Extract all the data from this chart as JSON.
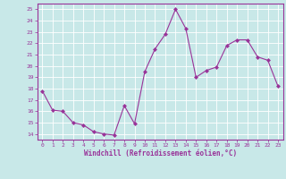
{
  "x": [
    0,
    1,
    2,
    3,
    4,
    5,
    6,
    7,
    8,
    9,
    10,
    11,
    12,
    13,
    14,
    15,
    16,
    17,
    18,
    19,
    20,
    21,
    22,
    23
  ],
  "y": [
    17.8,
    16.1,
    16.0,
    15.0,
    14.8,
    14.2,
    14.0,
    13.9,
    16.5,
    14.9,
    19.5,
    21.5,
    22.8,
    25.0,
    23.3,
    19.0,
    19.6,
    19.9,
    21.8,
    22.3,
    22.3,
    20.8,
    20.5,
    18.2
  ],
  "line_color": "#993399",
  "marker": "D",
  "marker_size": 2.0,
  "bg_color": "#c8e8e8",
  "grid_color": "#ffffff",
  "xlabel": "Windchill (Refroidissement éolien,°C)",
  "xlabel_color": "#993399",
  "tick_color": "#993399",
  "ylim": [
    13.5,
    25.5
  ],
  "xlim": [
    -0.5,
    23.5
  ],
  "yticks": [
    14,
    15,
    16,
    17,
    18,
    19,
    20,
    21,
    22,
    23,
    24,
    25
  ],
  "xticks": [
    0,
    1,
    2,
    3,
    4,
    5,
    6,
    7,
    8,
    9,
    10,
    11,
    12,
    13,
    14,
    15,
    16,
    17,
    18,
    19,
    20,
    21,
    22,
    23
  ]
}
